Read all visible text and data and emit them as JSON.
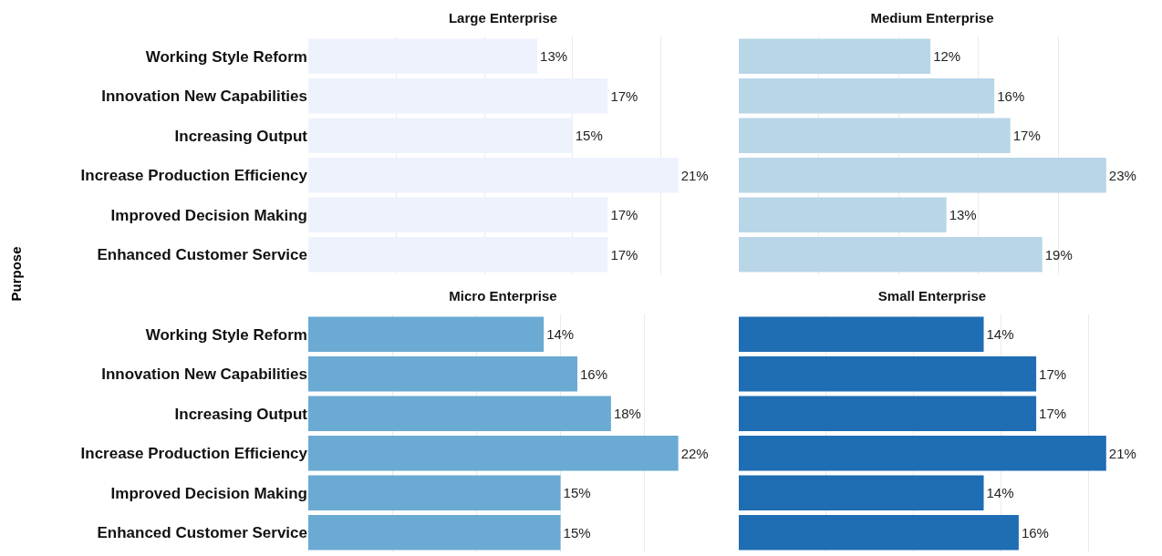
{
  "chart_data": [
    {
      "type": "bar",
      "orientation": "horizontal",
      "title": "Large Enterprise",
      "ylabel": "Purpose",
      "categories": [
        "Working Style Reform",
        "Innovation New Capabilities",
        "Increasing Output",
        "Increase Production Efficiency",
        "Improved Decision Making",
        "Enhanced Customer Service"
      ],
      "values": [
        13,
        17,
        15,
        21,
        17,
        17
      ],
      "value_labels": [
        "13%",
        "17%",
        "15%",
        "21%",
        "17%",
        "17%"
      ],
      "color": "#eef2fd",
      "grid": "x",
      "tick_labels": "y"
    },
    {
      "type": "bar",
      "orientation": "horizontal",
      "title": "Medium Enterprise",
      "categories": [
        null,
        null,
        null,
        null,
        null,
        null
      ],
      "values": [
        12,
        16,
        17,
        23,
        13,
        19
      ],
      "value_labels": [
        "12%",
        "16%",
        "17%",
        "23%",
        "13%",
        "19%"
      ],
      "color": "#b9d6e8",
      "grid": "x",
      "tick_labels": false
    },
    {
      "type": "bar",
      "orientation": "horizontal",
      "title": "Micro Enterprise",
      "categories": [
        "Working Style Reform",
        "Innovation New Capabilities",
        "Increasing Output",
        "Increase Production Efficiency",
        "Improved Decision Making",
        "Enhanced Customer Service"
      ],
      "values": [
        14,
        16,
        18,
        22,
        15,
        15
      ],
      "value_labels": [
        "14%",
        "16%",
        "18%",
        "22%",
        "15%",
        "15%"
      ],
      "color": "#6aaad3",
      "grid": "x",
      "tick_labels": "y"
    },
    {
      "type": "bar",
      "orientation": "horizontal",
      "title": "Small Enterprise",
      "categories": [
        null,
        null,
        null,
        null,
        null,
        null
      ],
      "values": [
        14,
        17,
        17,
        21,
        14,
        16
      ],
      "value_labels": [
        "14%",
        "17%",
        "17%",
        "21%",
        "14%",
        "16%"
      ],
      "color": "#1f6db3",
      "grid": "x",
      "tick_labels": false
    }
  ]
}
